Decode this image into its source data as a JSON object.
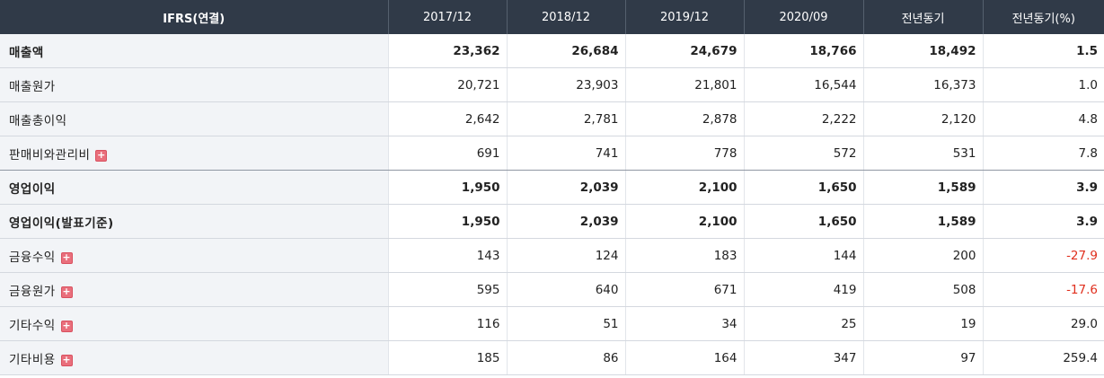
{
  "header": {
    "label": "IFRS(연결)",
    "periods": [
      "2017/12",
      "2018/12",
      "2019/12",
      "2020/09",
      "전년동기",
      "전년동기(%)"
    ]
  },
  "rows": [
    {
      "label": "매출액",
      "values": [
        "23,362",
        "26,684",
        "24,679",
        "18,766",
        "18,492",
        "1.5"
      ],
      "bold": true,
      "expandable": false
    },
    {
      "label": "매출원가",
      "values": [
        "20,721",
        "23,903",
        "21,801",
        "16,544",
        "16,373",
        "1.0"
      ],
      "bold": false,
      "expandable": false
    },
    {
      "label": "매출총이익",
      "values": [
        "2,642",
        "2,781",
        "2,878",
        "2,222",
        "2,120",
        "4.8"
      ],
      "bold": false,
      "expandable": false
    },
    {
      "label": "판매비와관리비",
      "values": [
        "691",
        "741",
        "778",
        "572",
        "531",
        "7.8"
      ],
      "bold": false,
      "expandable": true
    },
    {
      "label": "영업이익",
      "values": [
        "1,950",
        "2,039",
        "2,100",
        "1,650",
        "1,589",
        "3.9"
      ],
      "bold": true,
      "expandable": false
    },
    {
      "label": "영업이익(발표기준)",
      "values": [
        "1,950",
        "2,039",
        "2,100",
        "1,650",
        "1,589",
        "3.9"
      ],
      "bold": true,
      "expandable": false
    },
    {
      "label": "금융수익",
      "values": [
        "143",
        "124",
        "183",
        "144",
        "200",
        "-27.9"
      ],
      "bold": false,
      "expandable": true
    },
    {
      "label": "금융원가",
      "values": [
        "595",
        "640",
        "671",
        "419",
        "508",
        "-17.6"
      ],
      "bold": false,
      "expandable": true
    },
    {
      "label": "기타수익",
      "values": [
        "116",
        "51",
        "34",
        "25",
        "19",
        "29.0"
      ],
      "bold": false,
      "expandable": true
    },
    {
      "label": "기타비용",
      "values": [
        "185",
        "86",
        "164",
        "347",
        "97",
        "259.4"
      ],
      "bold": false,
      "expandable": true
    }
  ],
  "expand_icon": "plus-icon",
  "colors": {
    "header_bg": "#303a48",
    "negative": "#e0301e",
    "label_bg": "#f2f4f7",
    "expand_btn": "#e96f7c"
  }
}
